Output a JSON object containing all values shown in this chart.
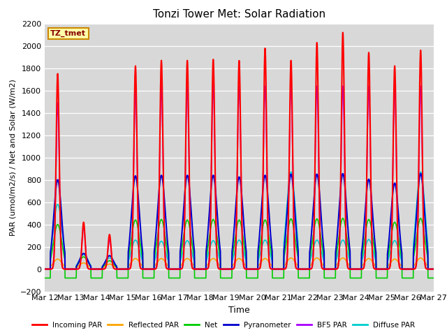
{
  "title": "Tonzi Tower Met: Solar Radiation",
  "xlabel": "Time",
  "ylabel": "PAR (umol/m2/s) / Net and Solar (W/m2)",
  "ylim": [
    -200,
    2200
  ],
  "yticks": [
    -200,
    0,
    200,
    400,
    600,
    800,
    1000,
    1200,
    1400,
    1600,
    1800,
    2000,
    2200
  ],
  "plot_bg_color": "#d8d8d8",
  "series": [
    {
      "label": "Incoming PAR",
      "color": "#ff0000"
    },
    {
      "label": "Reflected PAR",
      "color": "#ffa500"
    },
    {
      "label": "Net",
      "color": "#00cc00"
    },
    {
      "label": "Pyranometer",
      "color": "#0000cc"
    },
    {
      "label": "BF5 PAR",
      "color": "#aa00ff"
    },
    {
      "label": "Diffuse PAR",
      "color": "#00cccc"
    }
  ],
  "n_days": 15,
  "annotation_text": "TZ_tmet",
  "annotation_bg": "#ffffaa",
  "annotation_border": "#cc8800",
  "annotation_text_color": "#880000",
  "x_tick_labels": [
    "Mar 12",
    "Mar 13",
    "Mar 14",
    "Mar 15",
    "Mar 16",
    "Mar 17",
    "Mar 18",
    "Mar 19",
    "Mar 20",
    "Mar 21",
    "Mar 22",
    "Mar 23",
    "Mar 24",
    "Mar 25",
    "Mar 26",
    "Mar 27"
  ],
  "peak_incoming": [
    1750,
    420,
    310,
    1820,
    1870,
    1870,
    1880,
    1870,
    1980,
    1870,
    2030,
    2120,
    1940,
    1820,
    1960
  ],
  "peak_bf5": [
    1490,
    380,
    265,
    1600,
    1640,
    1640,
    1650,
    1640,
    1640,
    1650,
    1640,
    1640,
    1640,
    1640,
    1640
  ],
  "peak_pyrano": [
    800,
    140,
    120,
    835,
    840,
    840,
    840,
    825,
    840,
    850,
    850,
    855,
    805,
    770,
    855
  ],
  "peak_diffuse": [
    580,
    130,
    100,
    260,
    250,
    255,
    255,
    260,
    260,
    870,
    260,
    260,
    265,
    255,
    870
  ],
  "peak_net": [
    400,
    110,
    75,
    440,
    445,
    440,
    445,
    440,
    440,
    450,
    450,
    455,
    445,
    420,
    455
  ],
  "peak_reflected": [
    90,
    55,
    45,
    95,
    95,
    95,
    95,
    95,
    95,
    100,
    100,
    100,
    95,
    90,
    100
  ],
  "night_net": -80,
  "sigma_narrow": 0.07,
  "sigma_wide": 0.13
}
